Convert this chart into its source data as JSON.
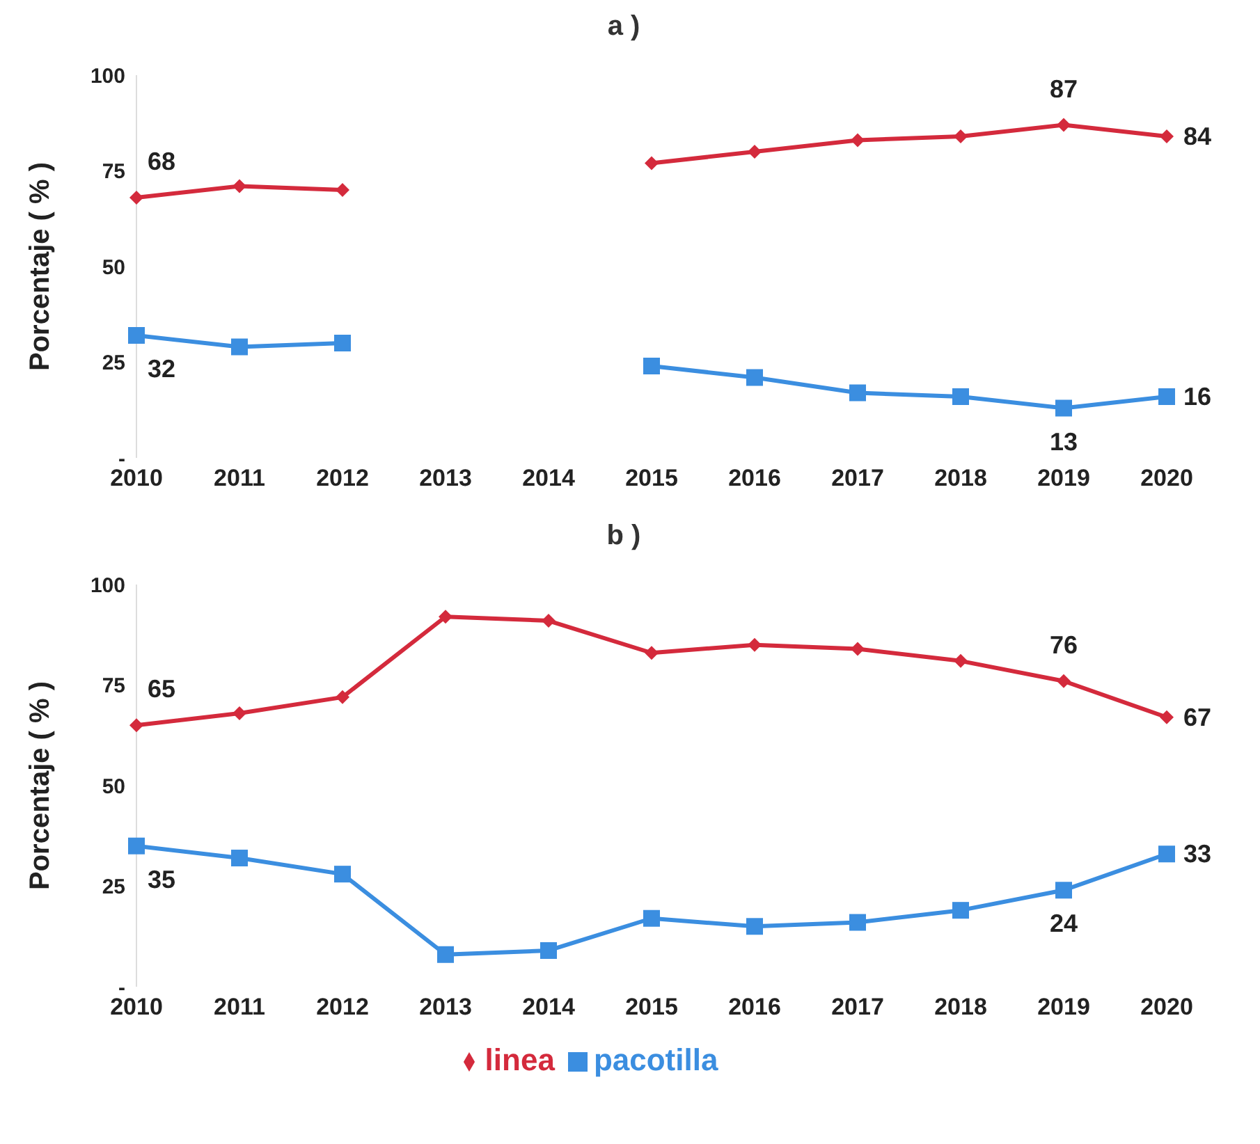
{
  "chart_data": [
    {
      "type": "line",
      "title": "a )",
      "ylabel": "Porcentaje ( % )",
      "categories": [
        "2010",
        "2011",
        "2012",
        "2013",
        "2014",
        "2015",
        "2016",
        "2017",
        "2018",
        "2019",
        "2020"
      ],
      "ylim": [
        0,
        100
      ],
      "yticks": [
        {
          "value": 0,
          "label": "-"
        },
        25,
        50,
        75,
        100
      ],
      "grid": false,
      "legend": false,
      "series": [
        {
          "color": "#d42a3c",
          "marker": "diamond",
          "values": [
            68,
            71,
            70,
            null,
            null,
            77,
            80,
            83,
            84,
            87,
            84
          ],
          "value_labels": [
            "68",
            null,
            null,
            null,
            null,
            null,
            null,
            null,
            null,
            "87",
            "84"
          ]
        },
        {
          "color": "#3b8ee0",
          "marker": "square",
          "values": [
            32,
            29,
            30,
            null,
            null,
            24,
            21,
            17,
            16,
            13,
            16
          ],
          "value_labels": [
            "32",
            null,
            null,
            null,
            null,
            null,
            null,
            null,
            null,
            "13",
            "16"
          ]
        }
      ]
    },
    {
      "type": "line",
      "title": "b )",
      "ylabel": "Porcentaje ( % )",
      "categories": [
        "2010",
        "2011",
        "2012",
        "2013",
        "2014",
        "2015",
        "2016",
        "2017",
        "2018",
        "2019",
        "2020"
      ],
      "ylim": [
        0,
        100
      ],
      "yticks": [
        {
          "value": 0,
          "label": "-"
        },
        25,
        50,
        75,
        100
      ],
      "grid": false,
      "legend": "bottom",
      "series": [
        {
          "name": "linea",
          "color": "#d42a3c",
          "marker": "diamond",
          "values": [
            65,
            68,
            72,
            92,
            91,
            83,
            85,
            84,
            81,
            76,
            67
          ],
          "value_labels": [
            "65",
            null,
            null,
            null,
            null,
            null,
            null,
            null,
            null,
            "76",
            "67"
          ]
        },
        {
          "name": "pacotilla",
          "color": "#3b8ee0",
          "marker": "square",
          "values": [
            35,
            32,
            28,
            8,
            9,
            17,
            15,
            16,
            19,
            24,
            33
          ],
          "value_labels": [
            "35",
            null,
            null,
            null,
            null,
            null,
            null,
            null,
            null,
            "24",
            "33"
          ]
        }
      ]
    }
  ]
}
